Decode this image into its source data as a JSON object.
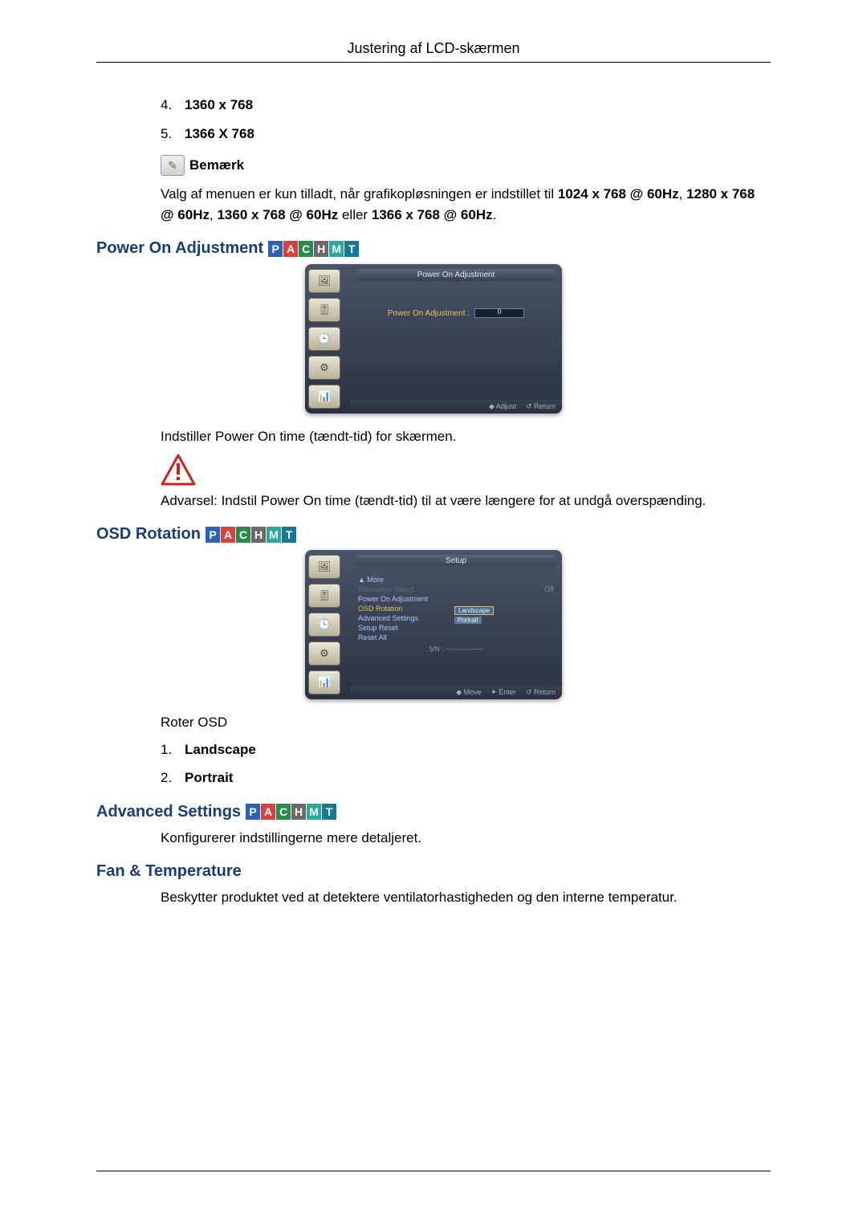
{
  "header": {
    "title": "Justering af LCD-skærmen"
  },
  "badges": {
    "items": [
      {
        "letter": "P",
        "bg": "#2a62b8"
      },
      {
        "letter": "A",
        "bg": "#d84040"
      },
      {
        "letter": "C",
        "bg": "#2a8a4a"
      },
      {
        "letter": "H",
        "bg": "#6a6a6a"
      },
      {
        "letter": "M",
        "bg": "#2aa89a"
      },
      {
        "letter": "T",
        "bg": "#187898"
      }
    ]
  },
  "top_list": {
    "items": [
      {
        "num": "4.",
        "text": "1360 x 768"
      },
      {
        "num": "5.",
        "text": "1366 X 768"
      }
    ]
  },
  "note": {
    "label": "Bemærk",
    "para_a": "Valg af menuen er kun tilladt, når grafikopløsningen er indstillet til ",
    "b1": "1024 x 768 @ 60Hz",
    "sep1": ", ",
    "b2": "1280 x 768 @ 60Hz",
    "sep2": ", ",
    "b3": "1360 x 768 @ 60Hz",
    "mid": " eller ",
    "b4": "1366 x 768 @ 60Hz",
    "end": "."
  },
  "power_on": {
    "heading": "Power On Adjustment",
    "osd": {
      "title": "Power On Adjustment",
      "row_label": "Power On Adjustment :",
      "value": "0",
      "footer": {
        "a": "◆ Adjust",
        "b": "↺ Return"
      }
    },
    "desc": "Indstiller Power On time (tændt-tid) for skærmen.",
    "warning": "Advarsel: Indstil Power On time (tændt-tid) til at være længere for at undgå overspænding."
  },
  "osd_rotation": {
    "heading": "OSD Rotation",
    "osd": {
      "title": "Setup",
      "rows": [
        {
          "label": "▲ More",
          "value": "",
          "cls": ""
        },
        {
          "label": "Resolution Select",
          "value": "Off",
          "cls": "dim"
        },
        {
          "label": "Power On Adjustment",
          "value": "",
          "cls": ""
        },
        {
          "label": "OSD Rotation",
          "value": "",
          "cls": "sel"
        },
        {
          "label": "Advanced Settings",
          "value": "",
          "cls": ""
        },
        {
          "label": "Setup Reset",
          "value": "",
          "cls": ""
        },
        {
          "label": "Reset All",
          "value": "",
          "cls": ""
        }
      ],
      "submenu": [
        "Landscape",
        "Portrait"
      ],
      "sn": "S/N : ------------------",
      "footer": {
        "a": "◆ Move",
        "b": "⯈ Enter",
        "c": "↺ Return"
      }
    },
    "desc": "Roter OSD",
    "list": [
      {
        "num": "1.",
        "text": "Landscape"
      },
      {
        "num": "2.",
        "text": "Portrait"
      }
    ]
  },
  "advanced": {
    "heading": "Advanced Settings",
    "desc": "Konfigurerer indstillingerne mere detaljeret."
  },
  "fan": {
    "heading": "Fan & Temperature",
    "desc": "Beskytter produktet ved at detektere ventilatorhastigheden og den interne temperatur."
  }
}
